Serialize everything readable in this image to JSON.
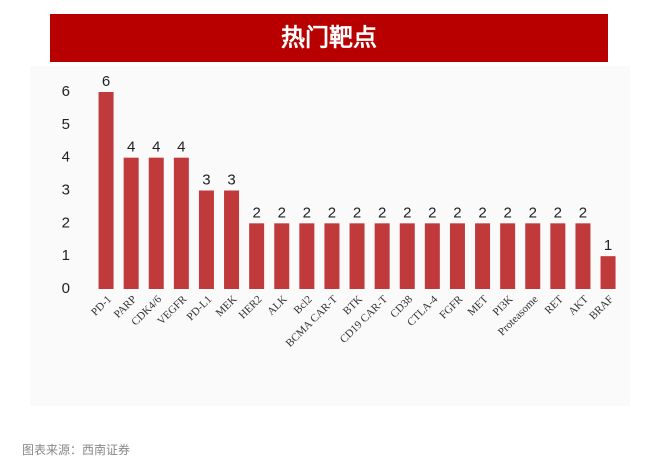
{
  "chart_data": {
    "type": "bar",
    "title": "热门靶点",
    "categories": [
      "PD-1",
      "PARP",
      "CDK4/6",
      "VEGFR",
      "PD-L1",
      "MEK",
      "HER2",
      "ALK",
      "Bcl2",
      "BCMA CAR-T",
      "BTK",
      "CD19 CAR-T",
      "CD38",
      "CTLA-4",
      "FGFR",
      "MET",
      "PI3K",
      "Proteasome",
      "RET",
      "AKT",
      "BRAF"
    ],
    "values": [
      6,
      4,
      4,
      4,
      3,
      3,
      2,
      2,
      2,
      2,
      2,
      2,
      2,
      2,
      2,
      2,
      2,
      2,
      2,
      2,
      1
    ],
    "color": "#c0393b",
    "ylim": [
      0,
      6
    ],
    "yticks": [
      0,
      1,
      2,
      3,
      4,
      5,
      6
    ],
    "grid": false,
    "source": "图表来源：西南证券"
  }
}
